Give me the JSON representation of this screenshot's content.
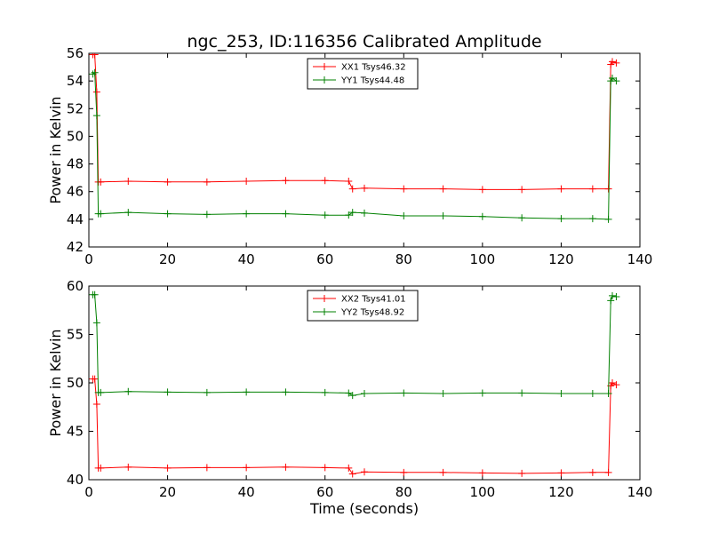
{
  "title": "ngc_253, ID:116356 Calibrated Amplitude",
  "colors": {
    "xx": "#ff0000",
    "yy": "#008000",
    "axes": "#000000",
    "background": "#ffffff"
  },
  "chart_data": [
    {
      "type": "line",
      "title": "ngc_253, ID:116356 Calibrated Amplitude",
      "xlabel": "",
      "ylabel": "Power in Kelvin",
      "xlim": [
        0,
        140
      ],
      "ylim": [
        42,
        56
      ],
      "xticks": [
        0,
        20,
        40,
        60,
        80,
        100,
        120,
        140
      ],
      "yticks": [
        42,
        44,
        46,
        48,
        50,
        52,
        54,
        56
      ],
      "grid": false,
      "legend": "top-center",
      "series": [
        {
          "name": "XX1 Tsys46.32",
          "color": "#ff0000",
          "marker": "+",
          "x": [
            1.0,
            1.5,
            2.0,
            2.4,
            3,
            10,
            20,
            30,
            40,
            50,
            60,
            66,
            67,
            70,
            80,
            90,
            100,
            110,
            120,
            128,
            132,
            132.6,
            133,
            134
          ],
          "y": [
            55.9,
            55.9,
            53.2,
            46.7,
            46.7,
            46.75,
            46.7,
            46.7,
            46.75,
            46.8,
            46.8,
            46.75,
            46.2,
            46.25,
            46.2,
            46.2,
            46.15,
            46.15,
            46.2,
            46.2,
            46.2,
            55.2,
            55.4,
            55.3
          ]
        },
        {
          "name": "YY1 Tsys44.48",
          "color": "#008000",
          "marker": "+",
          "x": [
            1.0,
            1.5,
            2.0,
            2.4,
            3,
            10,
            20,
            30,
            40,
            50,
            60,
            66,
            67,
            70,
            80,
            90,
            100,
            110,
            120,
            128,
            132,
            132.6,
            133,
            134
          ],
          "y": [
            54.5,
            54.6,
            51.5,
            44.4,
            44.4,
            44.5,
            44.4,
            44.35,
            44.4,
            44.4,
            44.3,
            44.3,
            44.5,
            44.45,
            44.25,
            44.25,
            44.2,
            44.1,
            44.05,
            44.05,
            44.0,
            54.0,
            54.2,
            54.0
          ]
        }
      ]
    },
    {
      "type": "line",
      "title": "",
      "xlabel": "Time (seconds)",
      "ylabel": "Power in Kelvin",
      "xlim": [
        0,
        140
      ],
      "ylim": [
        40,
        60
      ],
      "xticks": [
        0,
        20,
        40,
        60,
        80,
        100,
        120,
        140
      ],
      "yticks": [
        40,
        45,
        50,
        55,
        60
      ],
      "grid": false,
      "legend": "top-center",
      "series": [
        {
          "name": "XX2 Tsys41.01",
          "color": "#ff0000",
          "marker": "+",
          "x": [
            1.0,
            1.5,
            2.0,
            2.4,
            3,
            10,
            20,
            30,
            40,
            50,
            60,
            66,
            67,
            70,
            80,
            90,
            100,
            110,
            120,
            128,
            132,
            132.6,
            133,
            134
          ],
          "y": [
            50.4,
            50.4,
            47.8,
            41.2,
            41.2,
            41.3,
            41.2,
            41.25,
            41.25,
            41.3,
            41.25,
            41.2,
            40.6,
            40.8,
            40.75,
            40.75,
            40.7,
            40.65,
            40.7,
            40.75,
            40.75,
            49.7,
            50.0,
            49.8
          ]
        },
        {
          "name": "YY2 Tsys48.92",
          "color": "#008000",
          "marker": "+",
          "x": [
            1.0,
            1.5,
            2.0,
            2.4,
            3,
            10,
            20,
            30,
            40,
            50,
            60,
            66,
            67,
            70,
            80,
            90,
            100,
            110,
            120,
            128,
            132,
            132.6,
            133,
            134
          ],
          "y": [
            59.1,
            59.1,
            56.2,
            49.0,
            49.0,
            49.1,
            49.05,
            49.0,
            49.05,
            49.05,
            49.0,
            48.95,
            48.7,
            48.9,
            48.95,
            48.9,
            48.95,
            48.95,
            48.9,
            48.9,
            48.9,
            58.5,
            59.0,
            58.9
          ]
        }
      ]
    }
  ]
}
